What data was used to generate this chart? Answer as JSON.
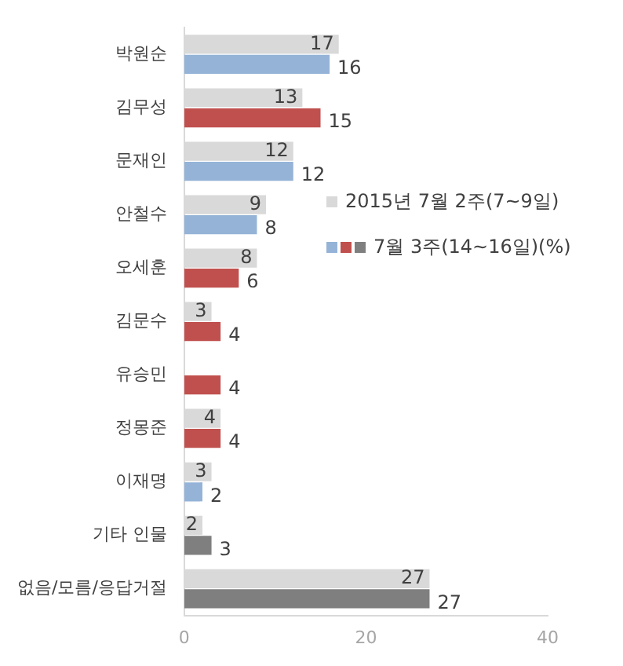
{
  "chart_data": {
    "type": "bar",
    "orientation": "horizontal",
    "categories": [
      "박원순",
      "김무성",
      "문재인",
      "안철수",
      "오세훈",
      "김문수",
      "유승민",
      "정몽준",
      "이재명",
      "기타 인물",
      "없음/모름/응답거절"
    ],
    "series": [
      {
        "name": "2015년 7월 2주(7~9일)",
        "color": "#d9d9d9",
        "values": [
          17,
          13,
          12,
          9,
          8,
          3,
          null,
          4,
          3,
          2,
          27
        ]
      },
      {
        "name": "7월 3주(14~16일)(%)",
        "colors": [
          "#95b3d7",
          "#c0504d",
          "#95b3d7",
          "#95b3d7",
          "#c0504d",
          "#c0504d",
          "#c0504d",
          "#c0504d",
          "#95b3d7",
          "#7f7f7f",
          "#7f7f7f"
        ],
        "values": [
          16,
          15,
          12,
          8,
          6,
          4,
          4,
          4,
          2,
          3,
          27
        ]
      }
    ],
    "xlim": [
      0,
      40
    ],
    "xticks": [
      0,
      20,
      40
    ],
    "data_labels": true,
    "grid": false,
    "legend": "right"
  }
}
